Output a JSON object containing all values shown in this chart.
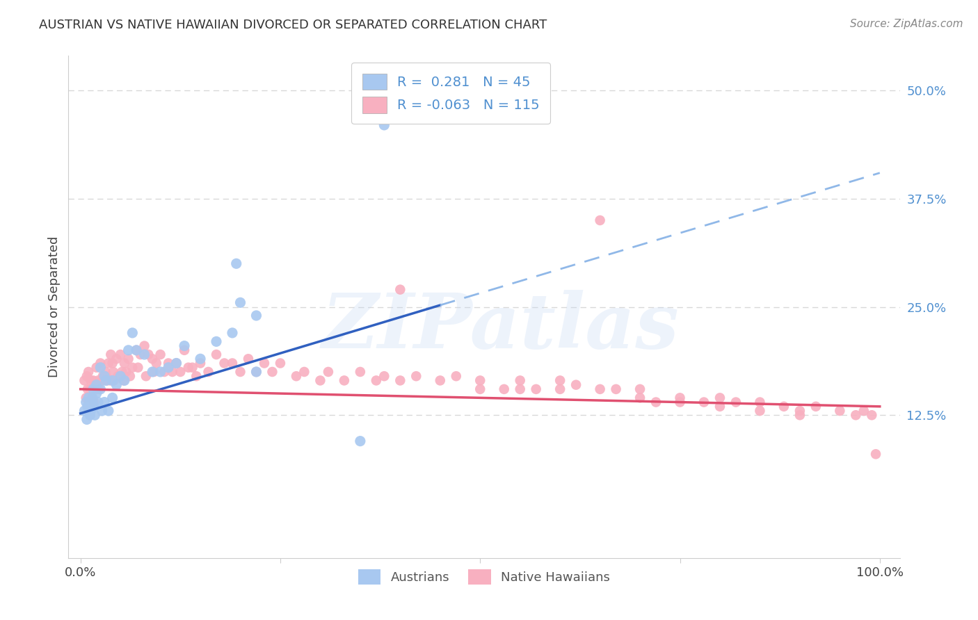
{
  "title": "AUSTRIAN VS NATIVE HAWAIIAN DIVORCED OR SEPARATED CORRELATION CHART",
  "source": "Source: ZipAtlas.com",
  "ylabel": "Divorced or Separated",
  "watermark": "ZIPatlas",
  "legend_blue_r": "0.281",
  "legend_blue_n": "45",
  "legend_pink_r": "-0.063",
  "legend_pink_n": "115",
  "blue_color": "#A8C8F0",
  "pink_color": "#F8B0C0",
  "blue_line_color": "#3060C0",
  "pink_line_color": "#E05070",
  "dashed_line_color": "#90B8E8",
  "ytick_color": "#5090D0",
  "background_color": "#FFFFFF",
  "grid_color": "#D8D8D8",
  "blue_scatter_x": [
    0.005,
    0.007,
    0.008,
    0.009,
    0.01,
    0.012,
    0.013,
    0.015,
    0.015,
    0.016,
    0.017,
    0.018,
    0.02,
    0.02,
    0.022,
    0.025,
    0.025,
    0.027,
    0.03,
    0.03,
    0.032,
    0.035,
    0.04,
    0.04,
    0.045,
    0.05,
    0.055,
    0.06,
    0.065,
    0.07,
    0.08,
    0.09,
    0.1,
    0.11,
    0.12,
    0.13,
    0.15,
    0.17,
    0.19,
    0.22,
    0.195,
    0.2,
    0.38,
    0.22,
    0.35
  ],
  "blue_scatter_y": [
    0.13,
    0.14,
    0.12,
    0.135,
    0.145,
    0.125,
    0.13,
    0.14,
    0.145,
    0.155,
    0.135,
    0.125,
    0.15,
    0.16,
    0.14,
    0.18,
    0.155,
    0.13,
    0.17,
    0.14,
    0.165,
    0.13,
    0.165,
    0.145,
    0.16,
    0.17,
    0.165,
    0.2,
    0.22,
    0.2,
    0.195,
    0.175,
    0.175,
    0.18,
    0.185,
    0.205,
    0.19,
    0.21,
    0.22,
    0.24,
    0.3,
    0.255,
    0.46,
    0.175,
    0.095
  ],
  "pink_scatter_x": [
    0.005,
    0.007,
    0.008,
    0.009,
    0.01,
    0.012,
    0.013,
    0.014,
    0.015,
    0.016,
    0.017,
    0.018,
    0.019,
    0.02,
    0.021,
    0.022,
    0.023,
    0.025,
    0.027,
    0.028,
    0.03,
    0.031,
    0.032,
    0.033,
    0.035,
    0.037,
    0.038,
    0.04,
    0.041,
    0.042,
    0.045,
    0.047,
    0.05,
    0.052,
    0.054,
    0.055,
    0.057,
    0.06,
    0.062,
    0.065,
    0.07,
    0.072,
    0.075,
    0.08,
    0.082,
    0.085,
    0.09,
    0.092,
    0.095,
    0.1,
    0.105,
    0.11,
    0.115,
    0.12,
    0.125,
    0.13,
    0.135,
    0.14,
    0.145,
    0.15,
    0.16,
    0.17,
    0.18,
    0.19,
    0.2,
    0.21,
    0.22,
    0.23,
    0.24,
    0.25,
    0.27,
    0.28,
    0.3,
    0.31,
    0.33,
    0.35,
    0.37,
    0.38,
    0.4,
    0.42,
    0.45,
    0.47,
    0.5,
    0.53,
    0.55,
    0.57,
    0.6,
    0.62,
    0.65,
    0.67,
    0.7,
    0.72,
    0.75,
    0.78,
    0.8,
    0.82,
    0.85,
    0.88,
    0.9,
    0.92,
    0.95,
    0.97,
    0.98,
    0.99,
    0.65,
    0.7,
    0.75,
    0.8,
    0.85,
    0.9,
    0.5,
    0.55,
    0.6,
    0.995,
    0.4
  ],
  "pink_scatter_y": [
    0.165,
    0.145,
    0.17,
    0.155,
    0.175,
    0.155,
    0.165,
    0.145,
    0.155,
    0.165,
    0.14,
    0.155,
    0.16,
    0.18,
    0.155,
    0.165,
    0.155,
    0.185,
    0.165,
    0.17,
    0.17,
    0.175,
    0.17,
    0.165,
    0.185,
    0.165,
    0.195,
    0.185,
    0.175,
    0.165,
    0.19,
    0.17,
    0.195,
    0.175,
    0.165,
    0.185,
    0.175,
    0.19,
    0.17,
    0.18,
    0.2,
    0.18,
    0.195,
    0.205,
    0.17,
    0.195,
    0.19,
    0.175,
    0.185,
    0.195,
    0.175,
    0.185,
    0.175,
    0.185,
    0.175,
    0.2,
    0.18,
    0.18,
    0.17,
    0.185,
    0.175,
    0.195,
    0.185,
    0.185,
    0.175,
    0.19,
    0.175,
    0.185,
    0.175,
    0.185,
    0.17,
    0.175,
    0.165,
    0.175,
    0.165,
    0.175,
    0.165,
    0.17,
    0.165,
    0.17,
    0.165,
    0.17,
    0.165,
    0.155,
    0.165,
    0.155,
    0.165,
    0.16,
    0.155,
    0.155,
    0.155,
    0.14,
    0.145,
    0.14,
    0.145,
    0.14,
    0.14,
    0.135,
    0.13,
    0.135,
    0.13,
    0.125,
    0.13,
    0.125,
    0.35,
    0.145,
    0.14,
    0.135,
    0.13,
    0.125,
    0.155,
    0.155,
    0.155,
    0.08,
    0.27
  ]
}
